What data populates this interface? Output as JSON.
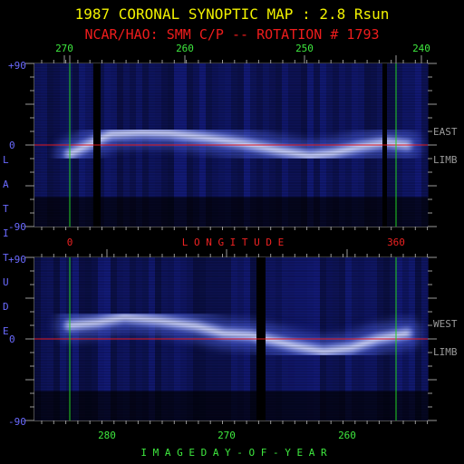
{
  "title": "1987 CORONAL SYNOPTIC MAP : 2.8 Rsun",
  "subtitle": "NCAR/HAO: SMM C/P -- ROTATION # 1793",
  "colors": {
    "title": "#f2f200",
    "subtitle": "#ee1c1c",
    "axis": "#9a9a9a",
    "green_label": "#3ee83e",
    "red_label": "#ee2222",
    "blue_label": "#6a6aff",
    "equator": "#e01818",
    "marker": "#22d022"
  },
  "chart_data": [
    {
      "type": "heatmap",
      "panel": "east-limb",
      "side_label": [
        "EAST",
        "LIMB"
      ],
      "top_axis": {
        "ticks": [
          "270",
          "260",
          "250",
          "240"
        ]
      },
      "bottom_axis": {
        "ticks": [
          "0",
          "360"
        ],
        "label": "L O N G I T U D E"
      },
      "ylim": [
        -90,
        90
      ],
      "y_ticks": [
        "+90",
        "0",
        "-90"
      ],
      "equator": 0,
      "vertical_markers": [
        "0",
        "360"
      ],
      "streamer_band_lat": [
        [
          0,
          -10
        ],
        [
          20,
          0
        ],
        [
          45,
          12
        ],
        [
          80,
          14
        ],
        [
          110,
          13
        ],
        [
          150,
          8
        ],
        [
          190,
          2
        ],
        [
          230,
          -6
        ],
        [
          265,
          -12
        ],
        [
          290,
          -9
        ],
        [
          320,
          -2
        ],
        [
          350,
          3
        ],
        [
          372,
          0
        ]
      ]
    },
    {
      "type": "heatmap",
      "panel": "west-limb",
      "side_label": [
        "WEST",
        "LIMB"
      ],
      "bottom_axis": {
        "ticks": [
          "280",
          "270",
          "260"
        ],
        "label": "I M A G E   D A Y - O F - Y E A R"
      },
      "ylim": [
        -90,
        90
      ],
      "y_ticks": [
        "+90",
        "0",
        "-90"
      ],
      "equator": 0,
      "vertical_markers": [
        "0",
        "360"
      ],
      "streamer_band_lat": [
        [
          0,
          15
        ],
        [
          30,
          18
        ],
        [
          60,
          24
        ],
        [
          100,
          20
        ],
        [
          140,
          14
        ],
        [
          170,
          6
        ],
        [
          200,
          4
        ],
        [
          225,
          -2
        ],
        [
          250,
          -8
        ],
        [
          280,
          -14
        ],
        [
          310,
          -10
        ],
        [
          340,
          0
        ],
        [
          372,
          6
        ]
      ]
    }
  ],
  "y_axis_label": [
    "L",
    "A",
    "T",
    "I",
    "T",
    "U",
    "D",
    "E"
  ]
}
